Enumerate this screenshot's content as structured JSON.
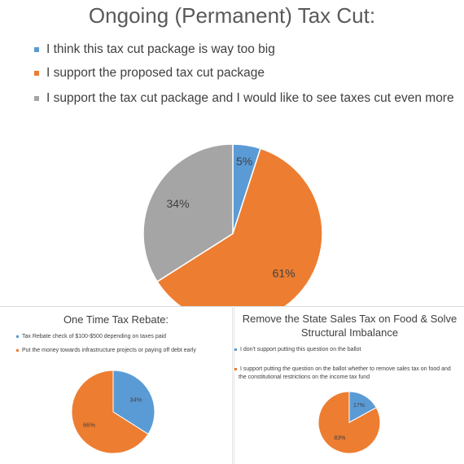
{
  "colors": {
    "blue": "#5b9bd5",
    "orange": "#ed7d31",
    "gray": "#a5a5a5"
  },
  "chart_data": [
    {
      "type": "pie",
      "title": "Ongoing (Permanent) Tax Cut:",
      "categories": [
        "I think this tax cut package is way too big",
        "I support the proposed tax cut package",
        "I support the tax cut package and I would like to see taxes cut even more"
      ],
      "values": [
        5,
        61,
        34
      ],
      "data_labels": [
        "5%",
        "61%",
        "34%"
      ],
      "colors": [
        "#5b9bd5",
        "#ed7d31",
        "#a5a5a5"
      ],
      "legend_position": "top-left"
    },
    {
      "type": "pie",
      "title": "One Time Tax Rebate:",
      "categories": [
        "Tax Rebate check of $100-$500 depending on taxes paid",
        "Put the money towards infrastructure projects or paying off debt early"
      ],
      "values": [
        34,
        66
      ],
      "data_labels": [
        "34%",
        "66%"
      ],
      "colors": [
        "#5b9bd5",
        "#ed7d31"
      ],
      "legend_position": "top-left"
    },
    {
      "type": "pie",
      "title_lines": [
        "Remove the State Sales Tax on Food & Solve",
        "Structural Imbalance"
      ],
      "categories": [
        "I don't support putting this question on the ballot",
        "I support putting the question on the ballot whether to remove sales tax on food and the constitutional restrictions on the income tax fund"
      ],
      "category_lines": [
        [
          "I don't support putting this question on the ballot"
        ],
        [
          "I support putting the question on the ballot whether to remove sales tax on food and",
          "the constitutional restrictions on the income tax fund"
        ]
      ],
      "values": [
        17,
        83
      ],
      "data_labels": [
        "17%",
        "83%"
      ],
      "colors": [
        "#5b9bd5",
        "#ed7d31"
      ],
      "legend_position": "top-left"
    }
  ]
}
